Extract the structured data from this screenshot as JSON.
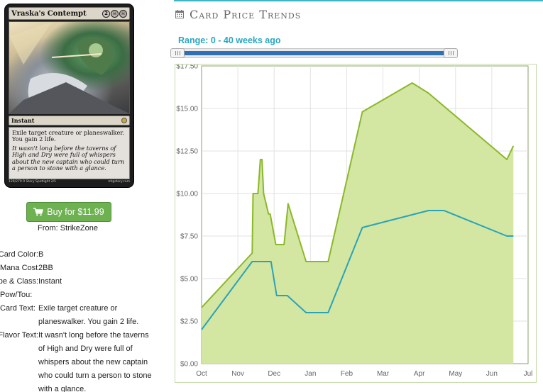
{
  "card": {
    "name": "Vraska's Contempt",
    "mana_generic": "2",
    "type_line": "Instant",
    "rules_text": "Exile target creature or planeswalker. You gain 2 life.",
    "flavor_text": "It wasn't long before the taverns of High and Dry were full of whispers about the new captain who could turn a person to stone with a glance.",
    "footer_left": "129/279 R Story Spotlight 2/5",
    "footer_right": "mtgstory.com"
  },
  "buy": {
    "label": "Buy for $11.99",
    "icon": "shopping-cart-icon",
    "from": "From: StrikeZone",
    "color": "#6db150"
  },
  "attributes": [
    {
      "key": "Card Color:",
      "value": "B"
    },
    {
      "key": "Mana Cost",
      "value": "2BB"
    },
    {
      "key": "Type & Class:",
      "value": "Instant"
    },
    {
      "key": "Pow/Tou:",
      "value": ""
    },
    {
      "key": "Card Text:",
      "value": "Exile target creature or planeswalker. You gain 2 life."
    },
    {
      "key": "Flavor Text:",
      "value": "It wasn't long before the taverns of High and Dry were full of whispers about the new captain who could turn a person to stone with a glance."
    }
  ],
  "trends": {
    "title": "Card Price Trends",
    "icon": "calendar-icon",
    "range_label": "Range: 0 - 40 weeks ago",
    "accent": "#3fb6c6"
  },
  "chart_data": {
    "type": "area",
    "x_ticks": [
      "Oct",
      "Nov",
      "Dec",
      "Jan",
      "Feb",
      "Mar",
      "Apr",
      "May",
      "Jun",
      "Jul"
    ],
    "y_ticks": [
      "$0.00",
      "$2.50",
      "$5.00",
      "$7.50",
      "$10.00",
      "$12.50",
      "$15.00",
      "$17.50"
    ],
    "ylim": [
      0,
      17.5
    ],
    "xlim": [
      0,
      40
    ],
    "grid": true,
    "series": [
      {
        "style": "area",
        "color": "#8bb82a",
        "fill": "#d3e6a2",
        "points": [
          [
            0,
            3.3
          ],
          [
            6.2,
            6.5
          ],
          [
            6.3,
            10
          ],
          [
            6.9,
            10
          ],
          [
            7.2,
            12
          ],
          [
            7.4,
            12
          ],
          [
            7.6,
            10
          ],
          [
            8.2,
            8.8
          ],
          [
            8.4,
            8.8
          ],
          [
            9.1,
            7
          ],
          [
            10.1,
            7
          ],
          [
            10.6,
            9.4
          ],
          [
            12.8,
            6
          ],
          [
            15.5,
            6
          ],
          [
            19.7,
            14.8
          ],
          [
            25.8,
            16.5
          ],
          [
            27.8,
            15.9
          ],
          [
            37.4,
            12
          ],
          [
            38.2,
            12.8
          ]
        ]
      },
      {
        "style": "line",
        "color": "#2aa3b8",
        "points": [
          [
            0,
            2
          ],
          [
            6.2,
            6
          ],
          [
            8.5,
            6
          ],
          [
            9.2,
            4
          ],
          [
            10.5,
            4
          ],
          [
            12.8,
            3
          ],
          [
            15.5,
            3
          ],
          [
            19.7,
            8
          ],
          [
            27.8,
            9
          ],
          [
            29.7,
            9
          ],
          [
            37.4,
            7.5
          ],
          [
            38.2,
            7.5
          ]
        ]
      }
    ]
  }
}
